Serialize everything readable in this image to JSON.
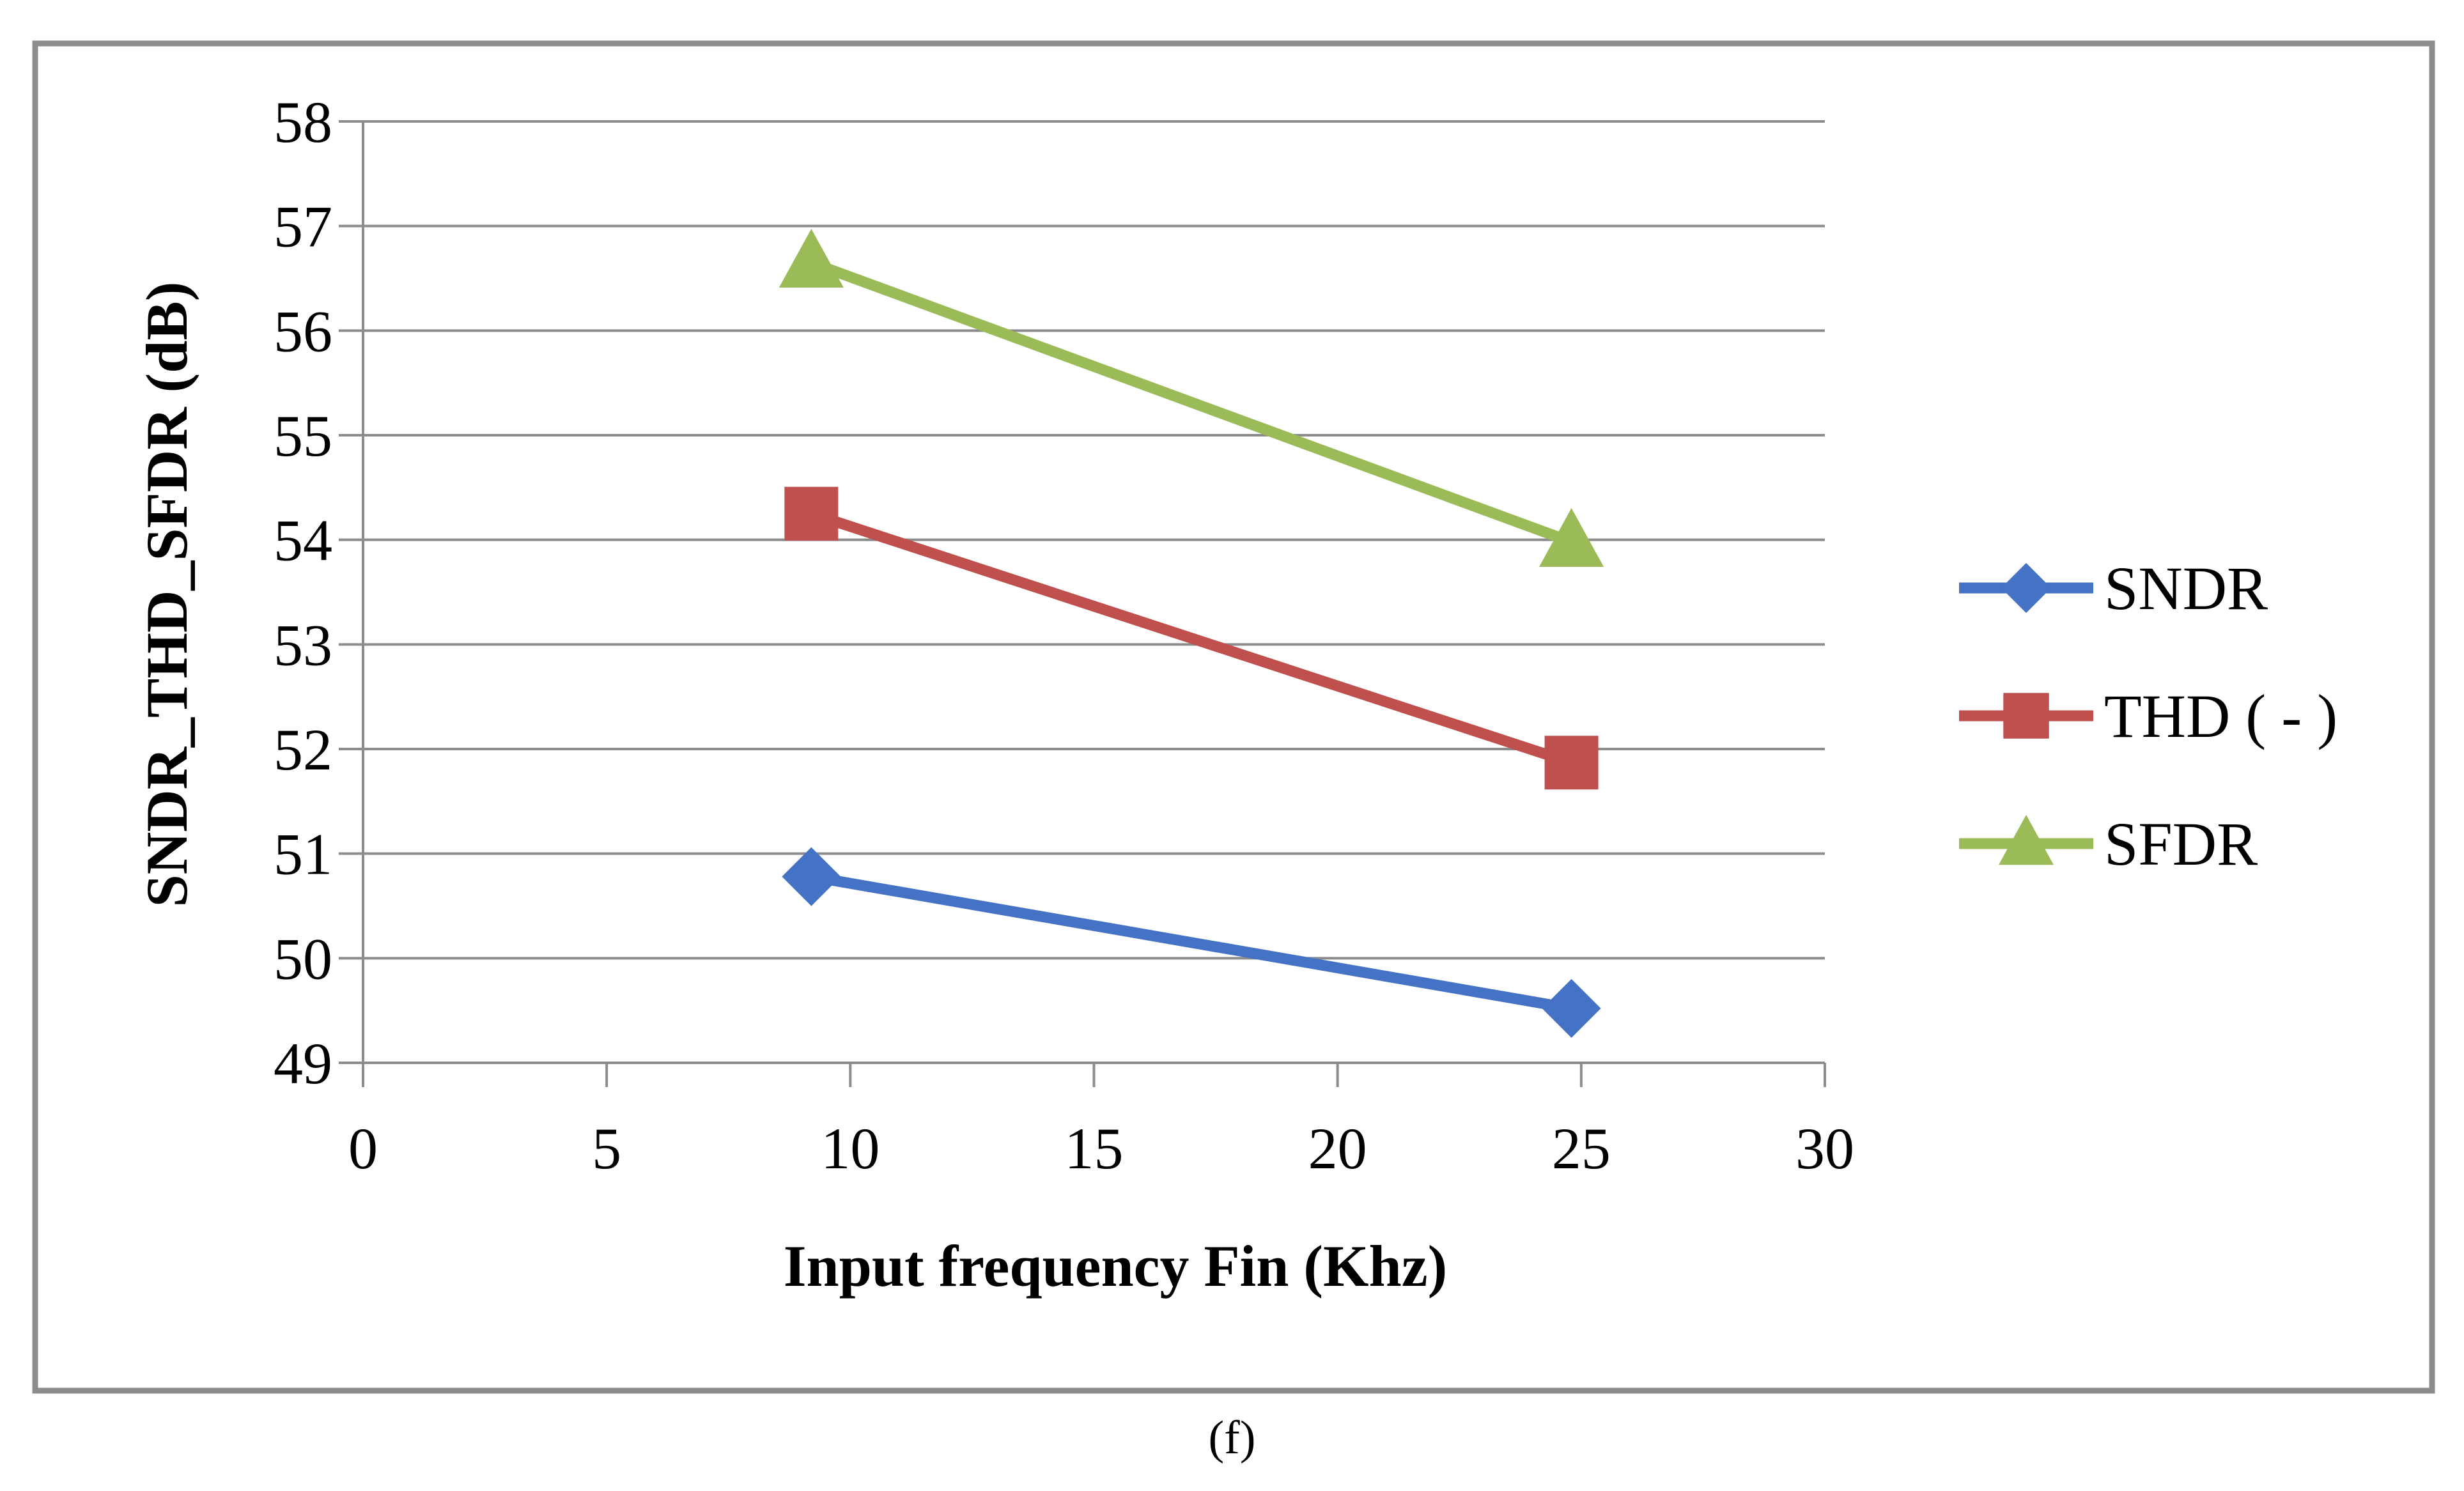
{
  "chart_data": {
    "type": "line",
    "title": "",
    "xlabel": "Input frequency Fin (Khz)",
    "ylabel": "SNDR_THD_SFDR (dB)",
    "xlim": [
      0,
      30
    ],
    "ylim": [
      49,
      58
    ],
    "xticks": [
      "0",
      "5",
      "10",
      "15",
      "20",
      "25",
      "30"
    ],
    "yticks": [
      "49",
      "50",
      "51",
      "52",
      "53",
      "54",
      "55",
      "56",
      "57",
      "58"
    ],
    "grid": "horizontal",
    "legend_position": "right",
    "series": [
      {
        "name": "SNDR",
        "marker": "diamond",
        "color": "#4472C4",
        "x": [
          9.2,
          24.8
        ],
        "y": [
          50.78,
          49.52
        ]
      },
      {
        "name": "THD ( - )",
        "marker": "square",
        "color": "#C0504D",
        "x": [
          9.2,
          24.8
        ],
        "y": [
          54.25,
          51.87
        ]
      },
      {
        "name": "SFDR",
        "marker": "triangle",
        "color": "#9BBB59",
        "x": [
          9.2,
          24.8
        ],
        "y": [
          56.65,
          53.98
        ]
      }
    ]
  },
  "caption": "(f)"
}
